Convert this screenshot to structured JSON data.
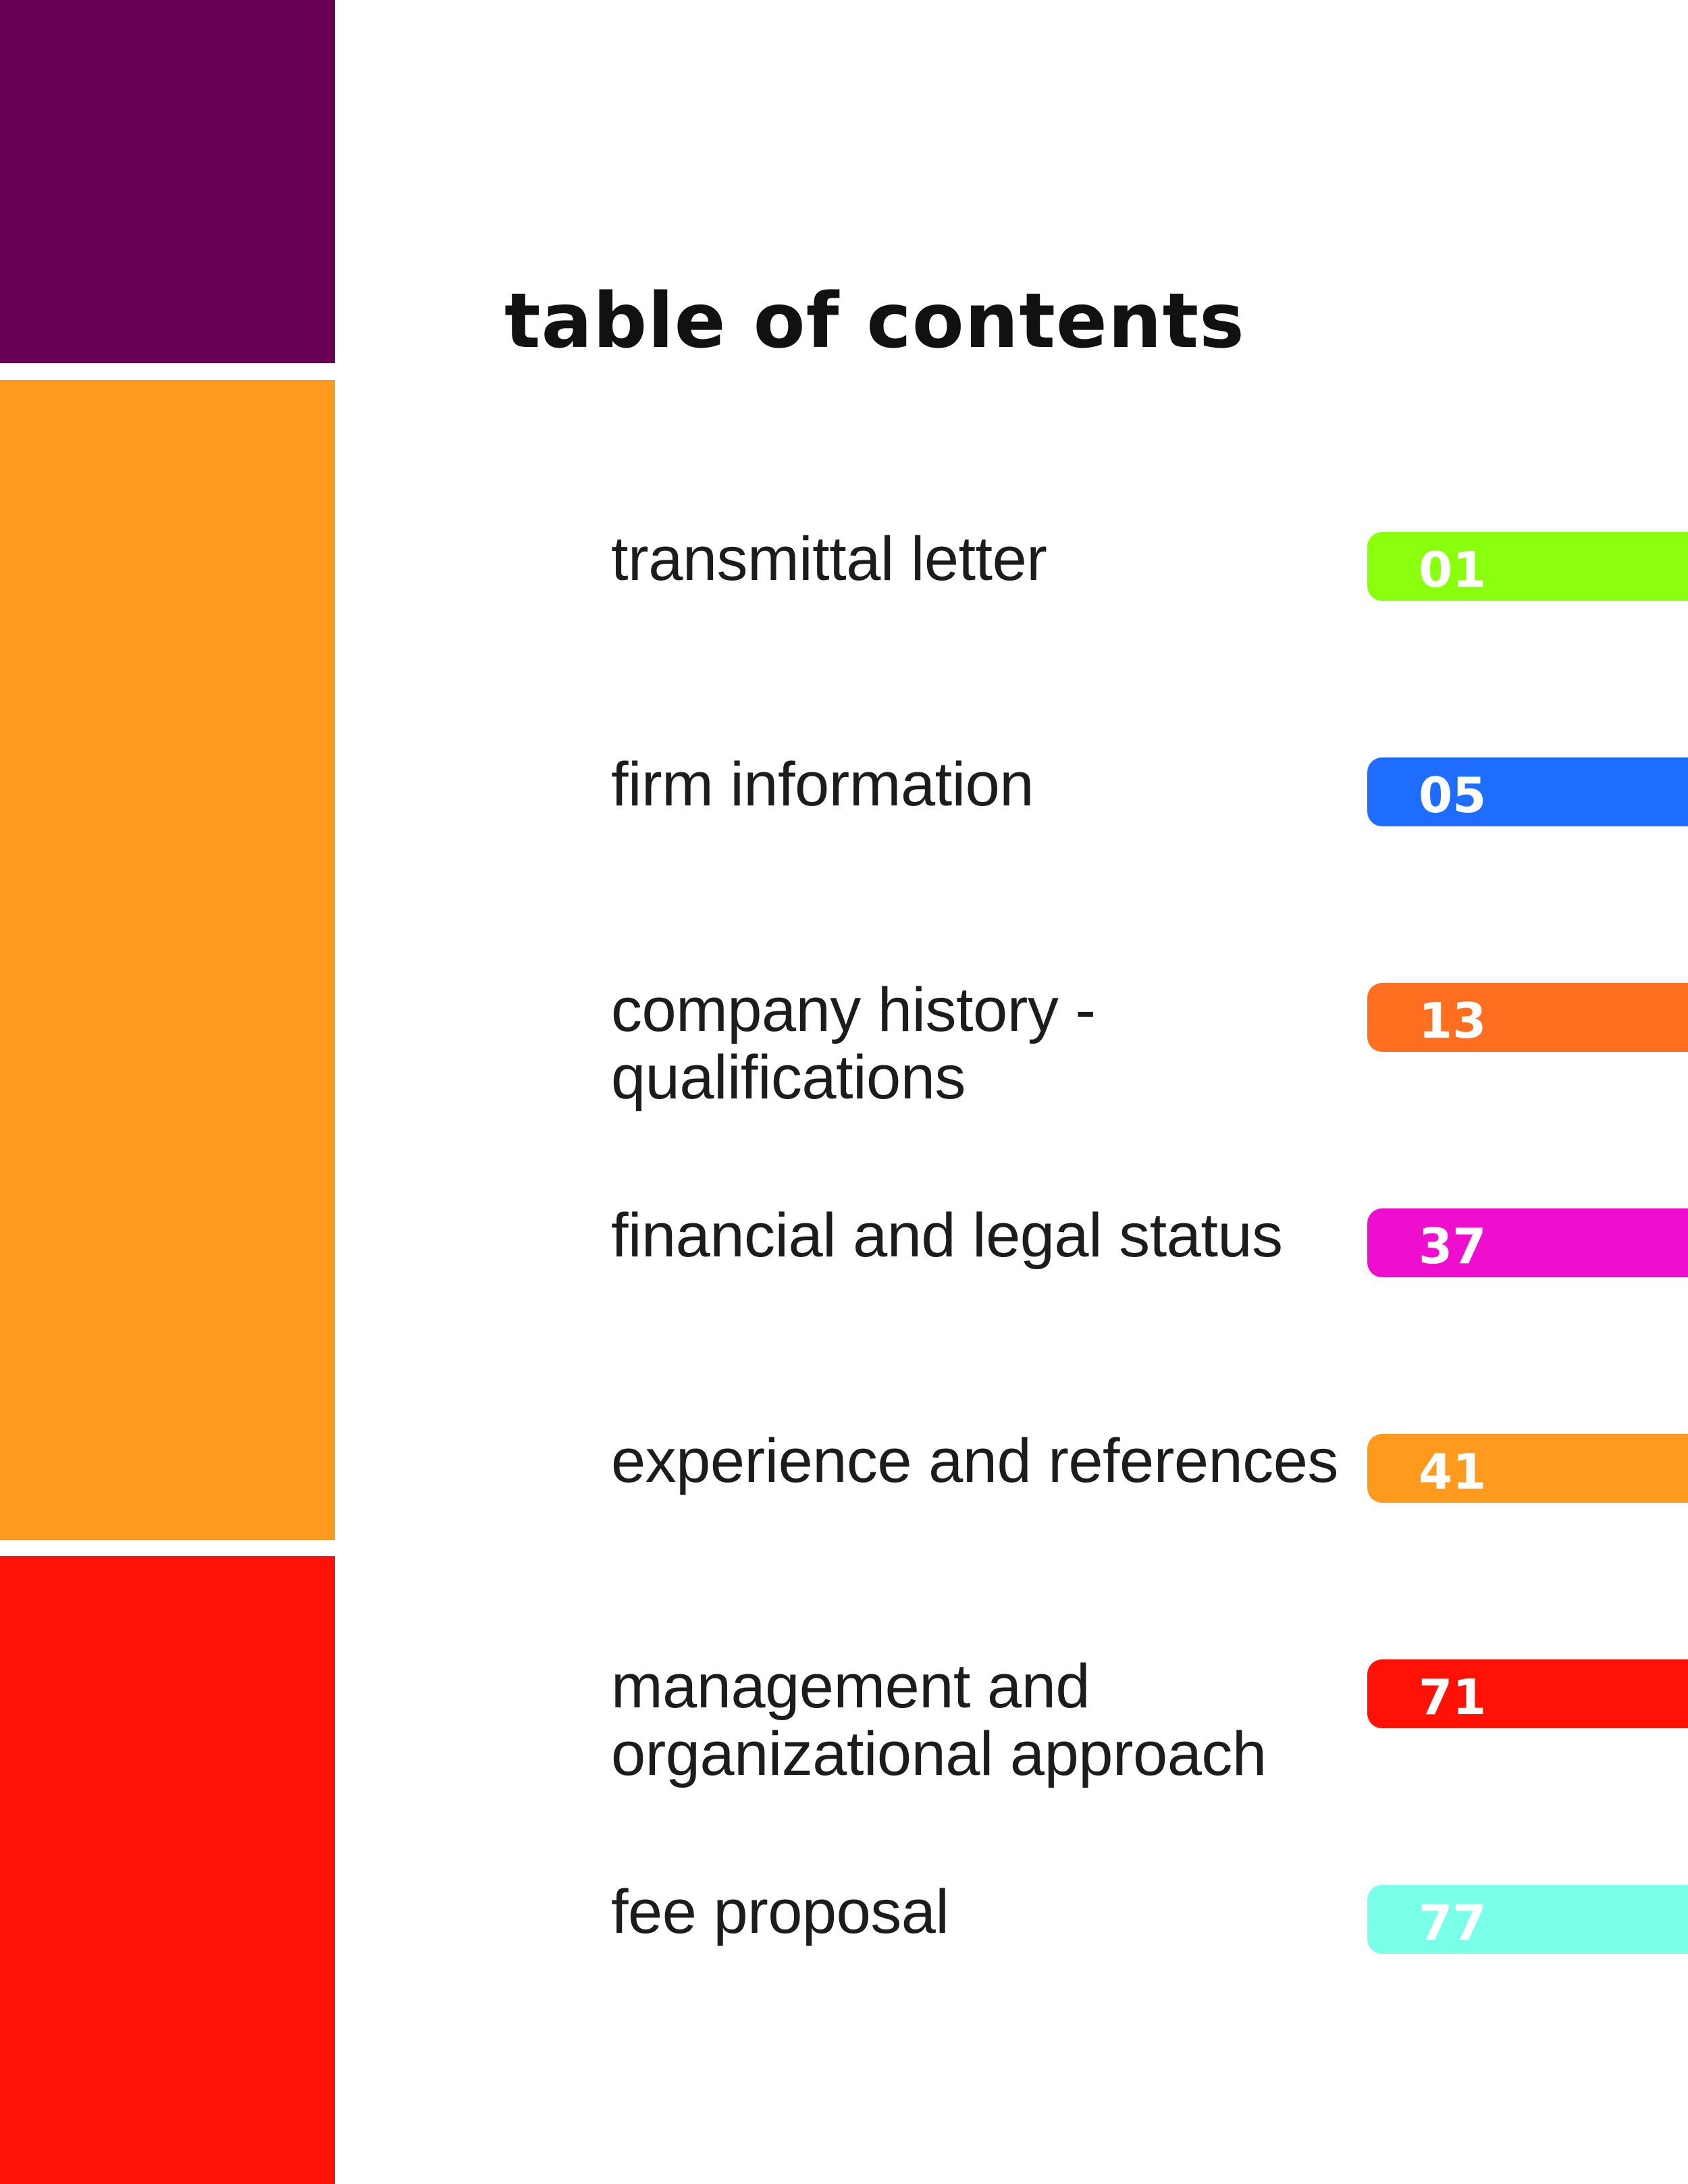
{
  "side_bands": {
    "top_color": "#690056",
    "middle_color": "#FF9A1F",
    "bottom_color": "#FF1205"
  },
  "title": "table of contents",
  "entries": [
    {
      "label_lines": [
        "transmittal letter"
      ],
      "page": "01",
      "tab_color": "#8AFF0E"
    },
    {
      "label_lines": [
        "firm information"
      ],
      "page": "05",
      "tab_color": "#1E6DFF"
    },
    {
      "label_lines": [
        "company history -",
        "qualifications"
      ],
      "page": "13",
      "tab_color": "#FF6F1F"
    },
    {
      "label_lines": [
        "financial and legal status"
      ],
      "page": "37",
      "tab_color": "#F00ECE"
    },
    {
      "label_lines": [
        "experience and references"
      ],
      "page": "41",
      "tab_color": "#FF9A1F"
    },
    {
      "label_lines": [
        "management and",
        "organizational approach"
      ],
      "page": "71",
      "tab_color": "#FF1205"
    },
    {
      "label_lines": [
        "fee proposal"
      ],
      "page": "77",
      "tab_color": "#7AFFE8"
    }
  ]
}
